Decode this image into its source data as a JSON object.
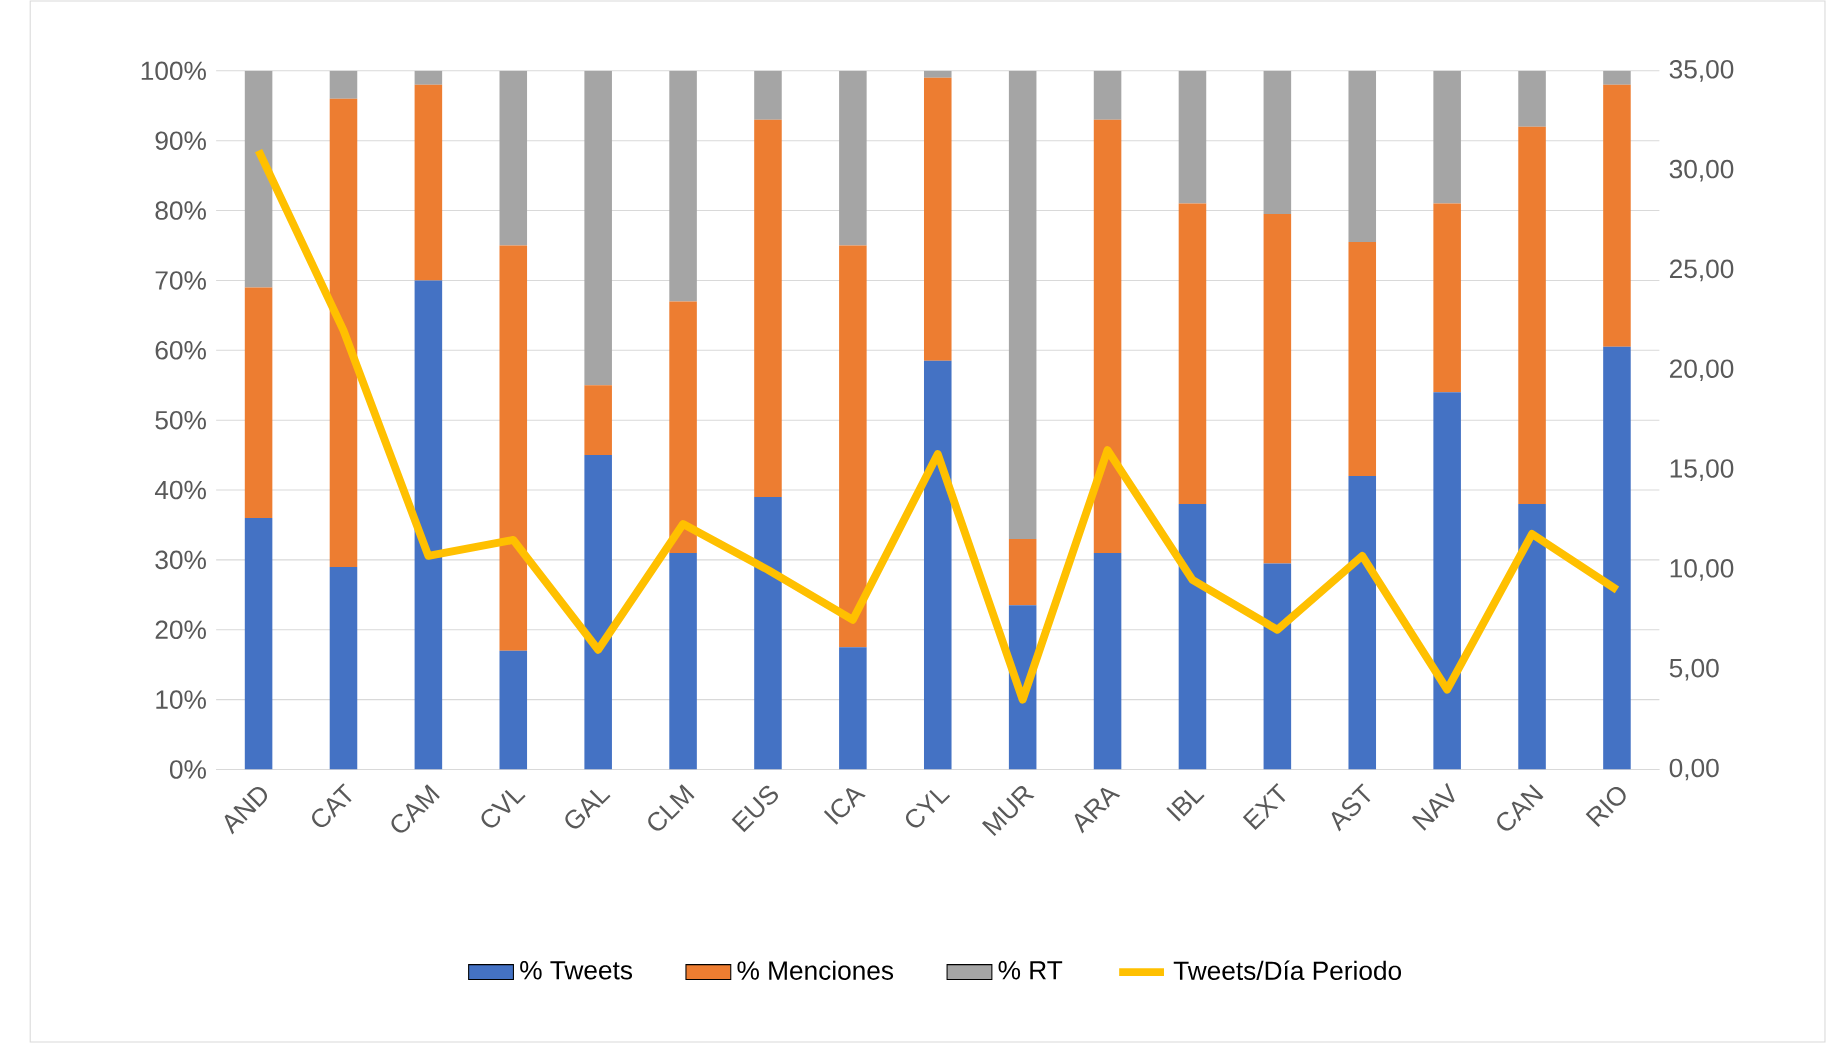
{
  "chart_data": {
    "type": "bar",
    "stacked": true,
    "categories": [
      "AND",
      "CAT",
      "CAM",
      "CVL",
      "GAL",
      "CLM",
      "EUS",
      "ICA",
      "CYL",
      "MUR",
      "ARA",
      "IBL",
      "EXT",
      "AST",
      "NAV",
      "CAN",
      "RIO"
    ],
    "series": [
      {
        "name": "% Tweets",
        "color": "#4472c4",
        "values": [
          36,
          29,
          70,
          17,
          45,
          31,
          39,
          17.5,
          58.5,
          23.5,
          31,
          38,
          29.5,
          42,
          54,
          38,
          60.5
        ]
      },
      {
        "name": "% Menciones",
        "color": "#ed7d31",
        "values": [
          33,
          67,
          28,
          58,
          10,
          36,
          54,
          57.5,
          40.5,
          9.5,
          62,
          43,
          50,
          33.5,
          27,
          54,
          37.5
        ]
      },
      {
        "name": "% RT",
        "color": "#a5a5a5",
        "values": [
          31,
          4,
          2,
          25,
          45,
          33,
          7,
          25,
          1,
          67,
          7,
          19,
          20.5,
          24.5,
          19,
          8,
          2
        ]
      },
      {
        "name": "Tweets/Día Periodo",
        "type": "line",
        "axis": "y2",
        "color": "#ffc000",
        "values": [
          31,
          22,
          10.7,
          11.5,
          6,
          12.3,
          10,
          7.5,
          15.8,
          3.5,
          16,
          9.5,
          7,
          10.7,
          4,
          11.8,
          9
        ]
      }
    ],
    "ylim": [
      0,
      100
    ],
    "yticks": [
      {
        "value": 0,
        "label": "0%"
      },
      {
        "value": 10,
        "label": "10%"
      },
      {
        "value": 20,
        "label": "20%"
      },
      {
        "value": 30,
        "label": "30%"
      },
      {
        "value": 40,
        "label": "40%"
      },
      {
        "value": 50,
        "label": "50%"
      },
      {
        "value": 60,
        "label": "60%"
      },
      {
        "value": 70,
        "label": "70%"
      },
      {
        "value": 80,
        "label": "80%"
      },
      {
        "value": 90,
        "label": "90%"
      },
      {
        "value": 100,
        "label": "100%"
      }
    ],
    "y2lim": [
      0,
      35
    ],
    "y2ticks": [
      {
        "value": 0,
        "label": "0,00"
      },
      {
        "value": 5,
        "label": "5,00"
      },
      {
        "value": 10,
        "label": "10,00"
      },
      {
        "value": 15,
        "label": "15,00"
      },
      {
        "value": 20,
        "label": "20,00"
      },
      {
        "value": 25,
        "label": "25,00"
      },
      {
        "value": 30,
        "label": "30,00"
      },
      {
        "value": 35,
        "label": "35,00"
      }
    ],
    "grid": "y",
    "legend": "bottom",
    "marker": "none"
  }
}
